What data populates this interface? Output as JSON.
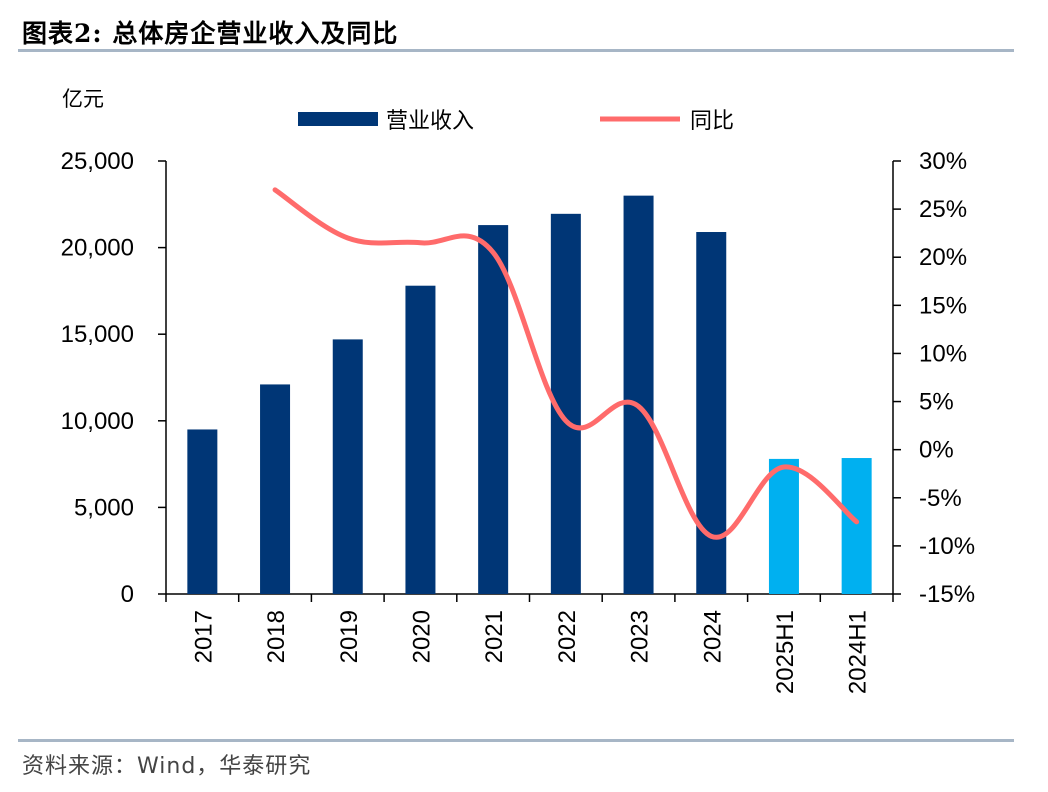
{
  "title": "图表2:  总体房企营业收入及同比",
  "source": "资料来源：Wind，华泰研究",
  "colors": {
    "bar_primary": "#003676",
    "bar_highlight": "#00b0f0",
    "line": "#ff6b6b",
    "rule": "#a7b6c6"
  },
  "chart_data": {
    "type": "bar",
    "title": "总体房企营业收入及同比",
    "categories": [
      "2017",
      "2018",
      "2019",
      "2020",
      "2021",
      "2022",
      "2023",
      "2024",
      "2025H1",
      "2024H1"
    ],
    "y_unit": "亿元",
    "ylim": [
      0,
      25000
    ],
    "yticks": [
      "0",
      "5,000",
      "10,000",
      "15,000",
      "20,000",
      "25,000"
    ],
    "y2lim": [
      -0.15,
      0.3
    ],
    "y2ticks": [
      "-15%",
      "-10%",
      "-5%",
      "0%",
      "5%",
      "10%",
      "15%",
      "20%",
      "25%",
      "30%"
    ],
    "legend_position": "top",
    "series": [
      {
        "name": "营业收入",
        "type": "bar",
        "axis": "left",
        "values": [
          9500,
          12100,
          14700,
          17800,
          21300,
          21950,
          23000,
          20900,
          7800,
          7850
        ],
        "highlight_categories": [
          "2025H1",
          "2024H1"
        ]
      },
      {
        "name": "同比",
        "type": "line",
        "axis": "right",
        "values": [
          null,
          0.27,
          0.22,
          0.215,
          0.205,
          0.03,
          0.045,
          -0.09,
          -0.018,
          -0.075
        ]
      }
    ]
  }
}
